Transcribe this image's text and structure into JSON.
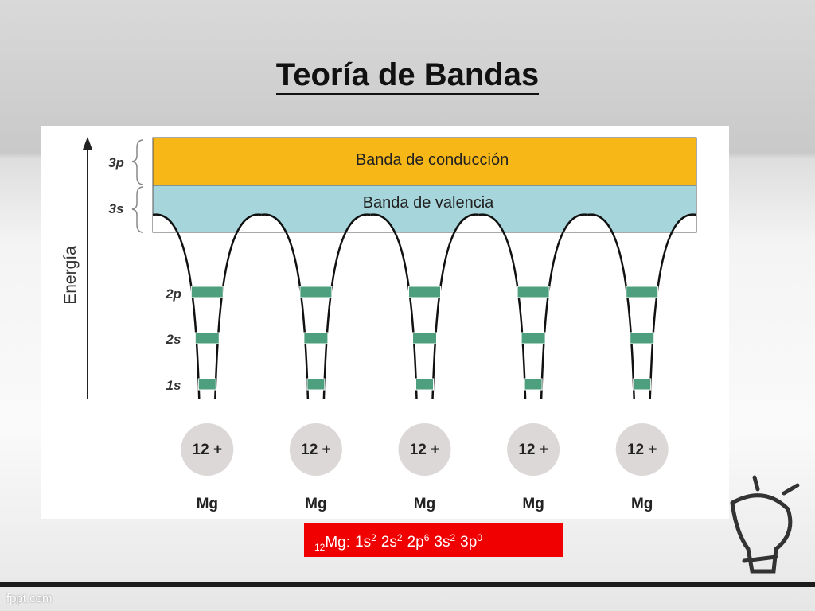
{
  "header": {
    "title": "Teoría de Bandas"
  },
  "diagram": {
    "axis_label": "Energía",
    "bands": [
      {
        "level": "3p",
        "label": "Banda de conducción"
      },
      {
        "level": "3s",
        "label": "Banda de valencia"
      }
    ],
    "levels": [
      "2p",
      "2s",
      "1s"
    ],
    "atoms": [
      {
        "charge": "12 +",
        "symbol": "Mg"
      },
      {
        "charge": "12 +",
        "symbol": "Mg"
      },
      {
        "charge": "12 +",
        "symbol": "Mg"
      },
      {
        "charge": "12 +",
        "symbol": "Mg"
      },
      {
        "charge": "12 +",
        "symbol": "Mg"
      }
    ]
  },
  "formula": {
    "subscript": "12",
    "symbol": "Mg:",
    "terms": [
      {
        "orbital": "1s",
        "electrons": "2"
      },
      {
        "orbital": "2s",
        "electrons": "2"
      },
      {
        "orbital": "2p",
        "electrons": "6"
      },
      {
        "orbital": "3s",
        "electrons": "2"
      },
      {
        "orbital": "3p",
        "electrons": "0"
      }
    ]
  },
  "footer": {
    "brand": "fppt.com"
  }
}
